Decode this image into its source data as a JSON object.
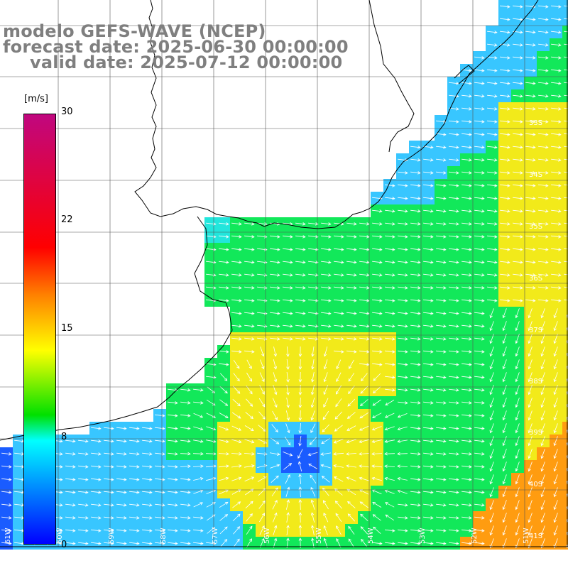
{
  "title": {
    "line1": "modelo GEFS-WAVE (NCEP)",
    "line2": "forecast date: 2025-06-30 00:00:00",
    "line3": "valid date: 2025-07-12 00:00:00"
  },
  "colorbar": {
    "unit": "[m/s]",
    "ticks": [
      {
        "value": 30,
        "label": "30"
      },
      {
        "value": 22,
        "label": "22"
      },
      {
        "value": 15,
        "label": "15"
      },
      {
        "value": 8,
        "label": "8"
      },
      {
        "value": 0,
        "label": "0"
      }
    ],
    "stops": [
      "#c0077f",
      "#ff0000",
      "#ff8000",
      "#ffff00",
      "#00e000",
      "#00ffff",
      "#0000ff"
    ]
  },
  "map": {
    "lat_labels": [
      "33S",
      "34S",
      "35S",
      "36S",
      "37S",
      "38S",
      "39S",
      "40S",
      "41S"
    ],
    "lon_labels": [
      "61W",
      "60W",
      "59W",
      "58W",
      "57W",
      "56W",
      "55W",
      "54W",
      "53W",
      "52W",
      "51W"
    ],
    "land_color": "#ffffff",
    "coast_color": "#000000",
    "arrow_color": "#ffffff",
    "palette": {
      "blue": "#1a5cff",
      "lightblue": "#38c6ff",
      "cyan": "#22e6dc",
      "green": "#12e85a",
      "lime": "#9cec28",
      "yellow": "#f2ea1a",
      "orange": "#ff9c10"
    }
  }
}
